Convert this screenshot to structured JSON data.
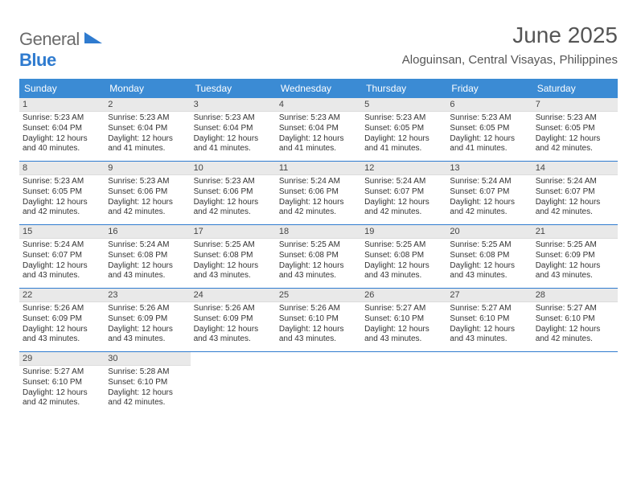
{
  "brand": {
    "word1": "General",
    "word2": "Blue"
  },
  "title": "June 2025",
  "subtitle": "Aloguinsan, Central Visayas, Philippines",
  "colors": {
    "header_bg": "#3b8bd4",
    "header_text": "#ffffff",
    "week_border": "#2f7bcf",
    "daynum_bg": "#e9e9e9",
    "text": "#333333",
    "brand_gray": "#6b6b6b",
    "brand_blue": "#2f7bcf",
    "background": "#ffffff"
  },
  "typography": {
    "title_fontsize": 28,
    "subtitle_fontsize": 15,
    "dayhead_fontsize": 12,
    "daynum_fontsize": 11,
    "cell_fontsize": 10
  },
  "day_names": [
    "Sunday",
    "Monday",
    "Tuesday",
    "Wednesday",
    "Thursday",
    "Friday",
    "Saturday"
  ],
  "weeks": [
    [
      {
        "n": "1",
        "sunrise": "Sunrise: 5:23 AM",
        "sunset": "Sunset: 6:04 PM",
        "dl1": "Daylight: 12 hours",
        "dl2": "and 40 minutes."
      },
      {
        "n": "2",
        "sunrise": "Sunrise: 5:23 AM",
        "sunset": "Sunset: 6:04 PM",
        "dl1": "Daylight: 12 hours",
        "dl2": "and 41 minutes."
      },
      {
        "n": "3",
        "sunrise": "Sunrise: 5:23 AM",
        "sunset": "Sunset: 6:04 PM",
        "dl1": "Daylight: 12 hours",
        "dl2": "and 41 minutes."
      },
      {
        "n": "4",
        "sunrise": "Sunrise: 5:23 AM",
        "sunset": "Sunset: 6:04 PM",
        "dl1": "Daylight: 12 hours",
        "dl2": "and 41 minutes."
      },
      {
        "n": "5",
        "sunrise": "Sunrise: 5:23 AM",
        "sunset": "Sunset: 6:05 PM",
        "dl1": "Daylight: 12 hours",
        "dl2": "and 41 minutes."
      },
      {
        "n": "6",
        "sunrise": "Sunrise: 5:23 AM",
        "sunset": "Sunset: 6:05 PM",
        "dl1": "Daylight: 12 hours",
        "dl2": "and 41 minutes."
      },
      {
        "n": "7",
        "sunrise": "Sunrise: 5:23 AM",
        "sunset": "Sunset: 6:05 PM",
        "dl1": "Daylight: 12 hours",
        "dl2": "and 42 minutes."
      }
    ],
    [
      {
        "n": "8",
        "sunrise": "Sunrise: 5:23 AM",
        "sunset": "Sunset: 6:05 PM",
        "dl1": "Daylight: 12 hours",
        "dl2": "and 42 minutes."
      },
      {
        "n": "9",
        "sunrise": "Sunrise: 5:23 AM",
        "sunset": "Sunset: 6:06 PM",
        "dl1": "Daylight: 12 hours",
        "dl2": "and 42 minutes."
      },
      {
        "n": "10",
        "sunrise": "Sunrise: 5:23 AM",
        "sunset": "Sunset: 6:06 PM",
        "dl1": "Daylight: 12 hours",
        "dl2": "and 42 minutes."
      },
      {
        "n": "11",
        "sunrise": "Sunrise: 5:24 AM",
        "sunset": "Sunset: 6:06 PM",
        "dl1": "Daylight: 12 hours",
        "dl2": "and 42 minutes."
      },
      {
        "n": "12",
        "sunrise": "Sunrise: 5:24 AM",
        "sunset": "Sunset: 6:07 PM",
        "dl1": "Daylight: 12 hours",
        "dl2": "and 42 minutes."
      },
      {
        "n": "13",
        "sunrise": "Sunrise: 5:24 AM",
        "sunset": "Sunset: 6:07 PM",
        "dl1": "Daylight: 12 hours",
        "dl2": "and 42 minutes."
      },
      {
        "n": "14",
        "sunrise": "Sunrise: 5:24 AM",
        "sunset": "Sunset: 6:07 PM",
        "dl1": "Daylight: 12 hours",
        "dl2": "and 42 minutes."
      }
    ],
    [
      {
        "n": "15",
        "sunrise": "Sunrise: 5:24 AM",
        "sunset": "Sunset: 6:07 PM",
        "dl1": "Daylight: 12 hours",
        "dl2": "and 43 minutes."
      },
      {
        "n": "16",
        "sunrise": "Sunrise: 5:24 AM",
        "sunset": "Sunset: 6:08 PM",
        "dl1": "Daylight: 12 hours",
        "dl2": "and 43 minutes."
      },
      {
        "n": "17",
        "sunrise": "Sunrise: 5:25 AM",
        "sunset": "Sunset: 6:08 PM",
        "dl1": "Daylight: 12 hours",
        "dl2": "and 43 minutes."
      },
      {
        "n": "18",
        "sunrise": "Sunrise: 5:25 AM",
        "sunset": "Sunset: 6:08 PM",
        "dl1": "Daylight: 12 hours",
        "dl2": "and 43 minutes."
      },
      {
        "n": "19",
        "sunrise": "Sunrise: 5:25 AM",
        "sunset": "Sunset: 6:08 PM",
        "dl1": "Daylight: 12 hours",
        "dl2": "and 43 minutes."
      },
      {
        "n": "20",
        "sunrise": "Sunrise: 5:25 AM",
        "sunset": "Sunset: 6:08 PM",
        "dl1": "Daylight: 12 hours",
        "dl2": "and 43 minutes."
      },
      {
        "n": "21",
        "sunrise": "Sunrise: 5:25 AM",
        "sunset": "Sunset: 6:09 PM",
        "dl1": "Daylight: 12 hours",
        "dl2": "and 43 minutes."
      }
    ],
    [
      {
        "n": "22",
        "sunrise": "Sunrise: 5:26 AM",
        "sunset": "Sunset: 6:09 PM",
        "dl1": "Daylight: 12 hours",
        "dl2": "and 43 minutes."
      },
      {
        "n": "23",
        "sunrise": "Sunrise: 5:26 AM",
        "sunset": "Sunset: 6:09 PM",
        "dl1": "Daylight: 12 hours",
        "dl2": "and 43 minutes."
      },
      {
        "n": "24",
        "sunrise": "Sunrise: 5:26 AM",
        "sunset": "Sunset: 6:09 PM",
        "dl1": "Daylight: 12 hours",
        "dl2": "and 43 minutes."
      },
      {
        "n": "25",
        "sunrise": "Sunrise: 5:26 AM",
        "sunset": "Sunset: 6:10 PM",
        "dl1": "Daylight: 12 hours",
        "dl2": "and 43 minutes."
      },
      {
        "n": "26",
        "sunrise": "Sunrise: 5:27 AM",
        "sunset": "Sunset: 6:10 PM",
        "dl1": "Daylight: 12 hours",
        "dl2": "and 43 minutes."
      },
      {
        "n": "27",
        "sunrise": "Sunrise: 5:27 AM",
        "sunset": "Sunset: 6:10 PM",
        "dl1": "Daylight: 12 hours",
        "dl2": "and 43 minutes."
      },
      {
        "n": "28",
        "sunrise": "Sunrise: 5:27 AM",
        "sunset": "Sunset: 6:10 PM",
        "dl1": "Daylight: 12 hours",
        "dl2": "and 42 minutes."
      }
    ],
    [
      {
        "n": "29",
        "sunrise": "Sunrise: 5:27 AM",
        "sunset": "Sunset: 6:10 PM",
        "dl1": "Daylight: 12 hours",
        "dl2": "and 42 minutes."
      },
      {
        "n": "30",
        "sunrise": "Sunrise: 5:28 AM",
        "sunset": "Sunset: 6:10 PM",
        "dl1": "Daylight: 12 hours",
        "dl2": "and 42 minutes."
      },
      null,
      null,
      null,
      null,
      null
    ]
  ]
}
